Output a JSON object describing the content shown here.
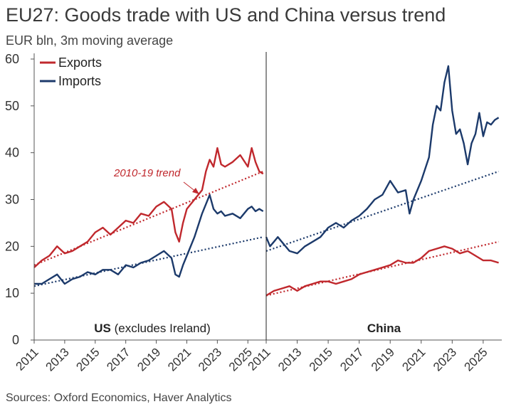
{
  "title": "EU27: Goods trade with US and China versus trend",
  "subtitle": "EUR bln, 3m moving average",
  "source": "Sources: Oxford Economics, Haver Analytics",
  "colors": {
    "exports": "#c0282d",
    "imports": "#1c3a6b",
    "axis": "#555555"
  },
  "chart_data": {
    "type": "line",
    "ylim": [
      0,
      60
    ],
    "yticks": [
      0,
      10,
      20,
      30,
      40,
      50,
      60
    ],
    "legend": {
      "placement": "top-left",
      "items": [
        "Exports",
        "Imports"
      ]
    },
    "annotation": "2010-19 trend",
    "panels": [
      {
        "label_bold": "US",
        "label_rest": " (excludes Ireland)",
        "xlim": [
          2011,
          2026.2
        ],
        "xticks": [
          "2011",
          "2013",
          "2015",
          "2017",
          "2019",
          "2021",
          "2023",
          "2025"
        ],
        "series": [
          {
            "name": "Exports",
            "x": [
              2011,
              2011.5,
              2012,
              2012.5,
              2013,
              2013.5,
              2014,
              2014.5,
              2015,
              2015.5,
              2016,
              2016.5,
              2017,
              2017.5,
              2018,
              2018.5,
              2019,
              2019.5,
              2020,
              2020.25,
              2020.5,
              2020.75,
              2021,
              2021.5,
              2022,
              2022.25,
              2022.5,
              2022.75,
              2023,
              2023.25,
              2023.5,
              2024,
              2024.5,
              2025,
              2025.25,
              2025.5,
              2025.75,
              2026
            ],
            "y": [
              15.5,
              17,
              18,
              20,
              18.5,
              19,
              20,
              21,
              23,
              24,
              22.5,
              24,
              25.5,
              25,
              27,
              26.5,
              28.5,
              29.5,
              28,
              23,
              21,
              25,
              28,
              30,
              32,
              36,
              38.5,
              37,
              41,
              37.5,
              37,
              38,
              39.5,
              37,
              41,
              38,
              36,
              35.5
            ]
          },
          {
            "name": "Imports",
            "x": [
              2011,
              2011.5,
              2012,
              2012.5,
              2013,
              2013.5,
              2014,
              2014.5,
              2015,
              2015.5,
              2016,
              2016.5,
              2017,
              2017.5,
              2018,
              2018.5,
              2019,
              2019.5,
              2020,
              2020.25,
              2020.5,
              2020.75,
              2021,
              2021.5,
              2022,
              2022.25,
              2022.5,
              2022.75,
              2023,
              2023.25,
              2023.5,
              2024,
              2024.5,
              2025,
              2025.25,
              2025.5,
              2025.75,
              2026
            ],
            "y": [
              12,
              12,
              13,
              14,
              12,
              13,
              13.5,
              14.5,
              14,
              15,
              15,
              14,
              16,
              15.5,
              16.5,
              17,
              18,
              19,
              17.5,
              14,
              13.5,
              16,
              18,
              22,
              27,
              29,
              31,
              28,
              27,
              27.5,
              26.5,
              27,
              26,
              28,
              28.5,
              27.5,
              28,
              27.5
            ]
          },
          {
            "name": "Exports trend",
            "x": [
              2011,
              2026
            ],
            "y": [
              16,
              36
            ]
          },
          {
            "name": "Imports trend",
            "x": [
              2011,
              2026
            ],
            "y": [
              11.5,
              22
            ]
          }
        ]
      },
      {
        "label_bold": "China",
        "label_rest": "",
        "xlim": [
          2011,
          2026.2
        ],
        "xticks": [
          "2011",
          "2013",
          "2015",
          "2017",
          "2019",
          "2021",
          "2023",
          "2025"
        ],
        "series": [
          {
            "name": "Exports",
            "x": [
              2011,
              2011.5,
              2012,
              2012.5,
              2013,
              2013.5,
              2014,
              2014.5,
              2015,
              2015.5,
              2016,
              2016.5,
              2017,
              2017.5,
              2018,
              2018.5,
              2019,
              2019.5,
              2020,
              2020.5,
              2021,
              2021.5,
              2022,
              2022.5,
              2023,
              2023.5,
              2024,
              2024.5,
              2025,
              2025.5,
              2026
            ],
            "y": [
              9.5,
              10.5,
              11,
              11.5,
              10.5,
              11.5,
              12,
              12.5,
              12.5,
              12,
              12.5,
              13,
              14,
              14.5,
              15,
              15.5,
              16,
              17,
              16.5,
              16.5,
              17.5,
              19,
              19.5,
              20,
              19.5,
              18.5,
              19,
              18,
              17,
              17,
              16.5
            ]
          },
          {
            "name": "Imports",
            "x": [
              2011,
              2011.25,
              2011.5,
              2011.75,
              2012,
              2012.5,
              2013,
              2013.5,
              2014,
              2014.5,
              2015,
              2015.5,
              2016,
              2016.5,
              2017,
              2017.5,
              2018,
              2018.5,
              2019,
              2019.5,
              2020,
              2020.25,
              2020.5,
              2021,
              2021.5,
              2021.75,
              2022,
              2022.25,
              2022.5,
              2022.75,
              2023,
              2023.25,
              2023.5,
              2023.75,
              2024,
              2024.25,
              2024.5,
              2024.75,
              2025,
              2025.25,
              2025.5,
              2025.75,
              2026
            ],
            "y": [
              22,
              20,
              21,
              22,
              21,
              19,
              18.5,
              20,
              21,
              22,
              24,
              25,
              24,
              25.5,
              26.5,
              28,
              30,
              31,
              34,
              31.5,
              32,
              27,
              30,
              34,
              39,
              46,
              50,
              49,
              55,
              58.5,
              49,
              44,
              45,
              42,
              37.5,
              42,
              44,
              48.5,
              43.5,
              46.5,
              46,
              47,
              47.5
            ]
          },
          {
            "name": "Exports trend",
            "x": [
              2011,
              2026
            ],
            "y": [
              9.5,
              21
            ]
          },
          {
            "name": "Imports trend",
            "x": [
              2011,
              2026
            ],
            "y": [
              19,
              36
            ]
          }
        ]
      }
    ]
  }
}
